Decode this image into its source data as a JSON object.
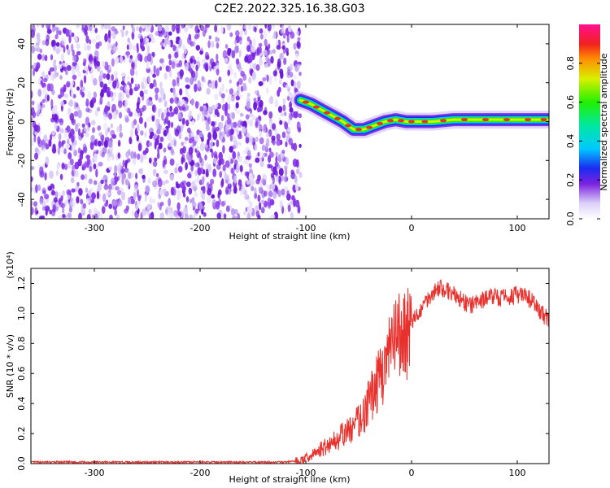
{
  "figure_title": "C2E2.2022.325.16.38.G03",
  "colors": {
    "snr_line": "#e8302c",
    "spectrogram_noise": "#7a22e0",
    "spectrogram_ridge_peak": "#e8302c"
  },
  "chart_data": [
    {
      "type": "heatmap",
      "name": "spectrogram",
      "title": "",
      "xlabel": "Height of straight line (km)",
      "ylabel": "Frequency (Hz)",
      "xlim": [
        -360,
        130
      ],
      "ylim": [
        -50,
        50
      ],
      "xticks": [
        -300,
        -200,
        -100,
        0,
        100
      ],
      "yticks": [
        -40,
        -20,
        0,
        20,
        40
      ],
      "grid": false,
      "description_of_values": "noise speckle over full frequency range for x < -105; narrow ridge for x >= -105",
      "noise_region_x": [
        -360,
        -105
      ],
      "ridge": {
        "x": [
          -105,
          -95,
          -85,
          -75,
          -65,
          -55,
          -45,
          -35,
          -25,
          -15,
          -5,
          5,
          20,
          40,
          60,
          80,
          100,
          120,
          130
        ],
        "y": [
          11,
          9,
          6,
          3,
          0,
          -4,
          -4,
          -2,
          0,
          1,
          0,
          0,
          0,
          1,
          1,
          1,
          1,
          1,
          1
        ]
      },
      "colorbar": {
        "label": "Normalized spectral amplitude",
        "range": [
          0,
          1
        ],
        "ticks": [
          0.0,
          0.2,
          0.4,
          0.6,
          0.8
        ],
        "tick_labels": [
          "0.0",
          "0.2",
          "0.4",
          "0.6",
          "0.8"
        ]
      }
    },
    {
      "type": "line",
      "name": "snr",
      "title": "",
      "xlabel": "Height of straight line (km)",
      "ylabel": "SNR (10 * v/v)",
      "y_multiplier_label": "(x10⁴)",
      "xlim": [
        -360,
        130
      ],
      "ylim": [
        0,
        1.3
      ],
      "xticks": [
        -300,
        -200,
        -100,
        0,
        100
      ],
      "yticks": [
        0.0,
        0.2,
        0.4,
        0.6,
        0.8,
        1.0,
        1.2
      ],
      "ytick_labels": [
        "0.0",
        "0.2",
        "0.4",
        "0.6",
        "0.8",
        "1.0",
        "1.2"
      ],
      "grid": false,
      "series": [
        {
          "x": [
            -360,
            -300,
            -200,
            -120,
            -105,
            -95,
            -85,
            -75,
            -65,
            -55,
            -45,
            -35,
            -25,
            -15,
            -5,
            5,
            15,
            25,
            35,
            45,
            55,
            65,
            75,
            85,
            95,
            105,
            115,
            120,
            125,
            130
          ],
          "y": [
            0.01,
            0.01,
            0.01,
            0.01,
            0.02,
            0.05,
            0.1,
            0.14,
            0.19,
            0.24,
            0.33,
            0.5,
            0.65,
            0.82,
            0.88,
            0.98,
            1.1,
            1.17,
            1.15,
            1.1,
            1.05,
            1.08,
            1.12,
            1.1,
            1.12,
            1.12,
            1.08,
            1.02,
            0.99,
            0.96
          ]
        }
      ]
    }
  ]
}
